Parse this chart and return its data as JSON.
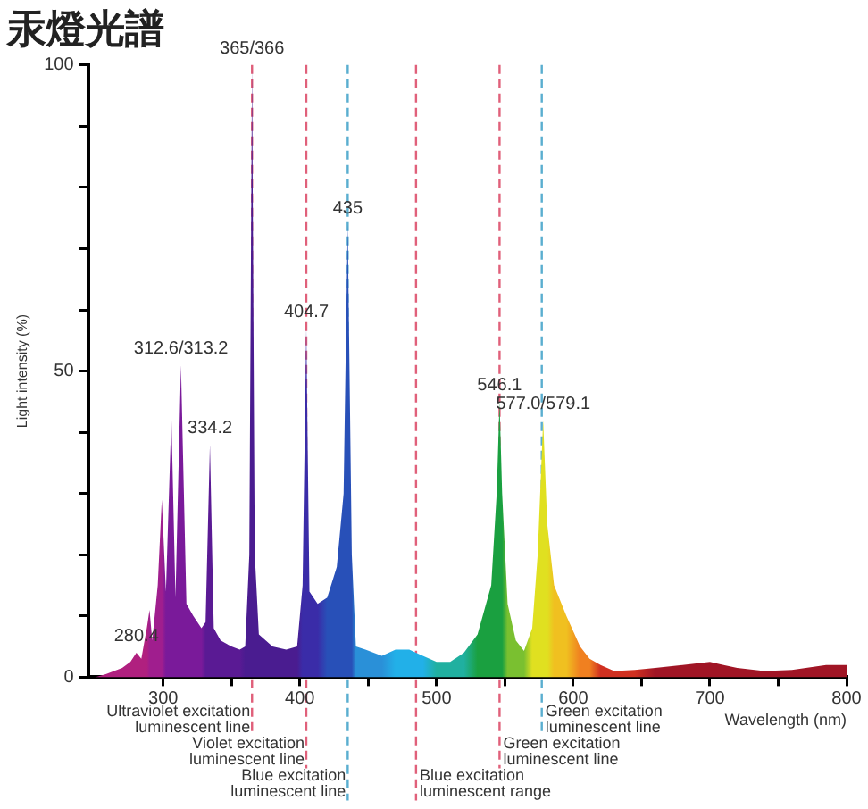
{
  "chart_data": {
    "type": "area",
    "title": "汞燈光譜",
    "xlabel": "Wavelength (nm)",
    "ylabel": "Light intensity (%)",
    "xlim": [
      245,
      800
    ],
    "xticks": [
      300,
      {
        "value": 350,
        "label": null
      },
      400,
      {
        "value": 450,
        "label": null
      },
      500,
      {
        "value": 550,
        "label": null
      },
      600,
      {
        "value": 650,
        "label": null
      },
      700,
      {
        "value": 750,
        "label": null
      },
      800
    ],
    "ylim": [
      0,
      100
    ],
    "yticks": [
      0,
      {
        "value": 10,
        "label": null
      },
      {
        "value": 20,
        "label": null
      },
      {
        "value": 30,
        "label": null
      },
      {
        "value": 40,
        "label": null
      },
      50,
      {
        "value": 60,
        "label": null
      },
      {
        "value": 70,
        "label": null
      },
      {
        "value": 80,
        "label": null
      },
      {
        "value": 90,
        "label": null
      },
      100
    ],
    "x": [
      250,
      258,
      270,
      276,
      280.4,
      284,
      288,
      290,
      292,
      296,
      299,
      302,
      306,
      309,
      313,
      317,
      322,
      328,
      331,
      334.2,
      337,
      342,
      350,
      356,
      360,
      363,
      365,
      367,
      370,
      380,
      390,
      398,
      402,
      404.7,
      407,
      413,
      420,
      427,
      432,
      435,
      438,
      441,
      448,
      460,
      470,
      480,
      490,
      500,
      510,
      520,
      530,
      540,
      544,
      546.1,
      548,
      552,
      558,
      564,
      570,
      574,
      578,
      581,
      586,
      595,
      605,
      612,
      620,
      630,
      645,
      660,
      680,
      700,
      710,
      720,
      740,
      760,
      785,
      800
    ],
    "values": [
      0,
      0.5,
      1.5,
      2.5,
      4,
      3,
      8,
      11,
      6,
      15,
      29,
      14,
      42.5,
      13,
      51,
      12,
      10,
      8,
      9,
      38,
      8,
      6,
      5,
      4.5,
      5,
      20,
      100,
      20,
      7,
      5,
      4.5,
      5,
      15,
      57,
      14,
      12,
      13,
      18,
      30,
      74,
      20,
      5,
      4.5,
      3.5,
      4.5,
      4.5,
      3.5,
      2.5,
      2.5,
      4,
      7,
      15,
      30,
      45,
      30,
      12,
      6,
      4.3,
      8,
      20,
      42,
      25,
      15,
      10,
      5,
      3,
      2,
      1,
      1.2,
      1.5,
      2,
      2.5,
      2,
      1.5,
      1,
      1.2,
      2,
      2
    ],
    "colors": [
      "#b0207f",
      "#b0207f",
      "#b0207f",
      "#b0207f",
      "#b0207f",
      "#b0207f",
      "#b0207f",
      "#a01e8e",
      "#a01e8e",
      "#a01e8e",
      "#a01e8e",
      "#7a1a9a",
      "#7a1a9a",
      "#7a1a9a",
      "#7a1a9a",
      "#7a1a9a",
      "#7a1a9a",
      "#7a1a9a",
      "#5a1a94",
      "#5a1a94",
      "#5a1a94",
      "#5a1a94",
      "#5a1a94",
      "#5a1a94",
      "#4a1c90",
      "#4a1c90",
      "#4a1c90",
      "#4a1c90",
      "#4a1c90",
      "#4a1c90",
      "#4a1c90",
      "#4a1c90",
      "#3a2ca8",
      "#3a2ca8",
      "#3a2ca8",
      "#3a2ca8",
      "#2850b8",
      "#2850b8",
      "#2850b8",
      "#2850b8",
      "#2850b8",
      "#2a90d8",
      "#2a90d8",
      "#2a90d8",
      "#22b0e8",
      "#22b0e8",
      "#22b0e8",
      "#20b0a0",
      "#20b0a0",
      "#20b0a0",
      "#1aa040",
      "#1aa040",
      "#1aa040",
      "#1aa040",
      "#1aa040",
      "#7ac030",
      "#7ac030",
      "#7ac030",
      "#e0e020",
      "#e0e020",
      "#e0e020",
      "#e0e020",
      "#f0c020",
      "#f0c020",
      "#f08020",
      "#f08020",
      "#d03020",
      "#d03020",
      "#d03020",
      "#a01525",
      "#a01525",
      "#a01525",
      "#a01525",
      "#a01525",
      "#a01525",
      "#a01525",
      "#a01525",
      "#a01525"
    ],
    "ref_lines": [
      {
        "axis": "x",
        "value": 365,
        "label": "Ultraviolet excitation luminescent line",
        "color": "#e0607a",
        "line_style": "dashed"
      },
      {
        "axis": "x",
        "value": 577,
        "label": "Green excitation luminescent line",
        "color": "#5aaed0",
        "line_style": "dashed"
      },
      {
        "axis": "x",
        "value": 404.7,
        "label": "Violet excitation luminescent line",
        "color": "#e0607a",
        "line_style": "dashed"
      },
      {
        "axis": "x",
        "value": 546.1,
        "label": "Green excitation luminescent line",
        "color": "#e0607a",
        "line_style": "dashed"
      },
      {
        "axis": "x",
        "value": 435,
        "label": "Blue excitation luminescent line",
        "color": "#5aaed0",
        "line_style": "dashed"
      },
      {
        "axis": "x",
        "value": 485,
        "label": "Blue excitation luminescent range",
        "color": "#e0607a",
        "line_style": "dashed"
      }
    ],
    "annotations": [
      {
        "text": "365/366",
        "x": 365,
        "y": 100
      },
      {
        "text": "435",
        "x": 435,
        "y": 74
      },
      {
        "text": "404.7",
        "x": 404.7,
        "y": 57
      },
      {
        "text": "312.6/313.2",
        "x": 313,
        "y": 51
      },
      {
        "text": "334.2",
        "x": 334.2,
        "y": 38
      },
      {
        "text": "280.4",
        "x": 280.4,
        "y": 4
      },
      {
        "text": "546.1",
        "x": 546.1,
        "y": 45
      },
      {
        "text": "577.0/579.1",
        "x": 578,
        "y": 42
      }
    ]
  }
}
